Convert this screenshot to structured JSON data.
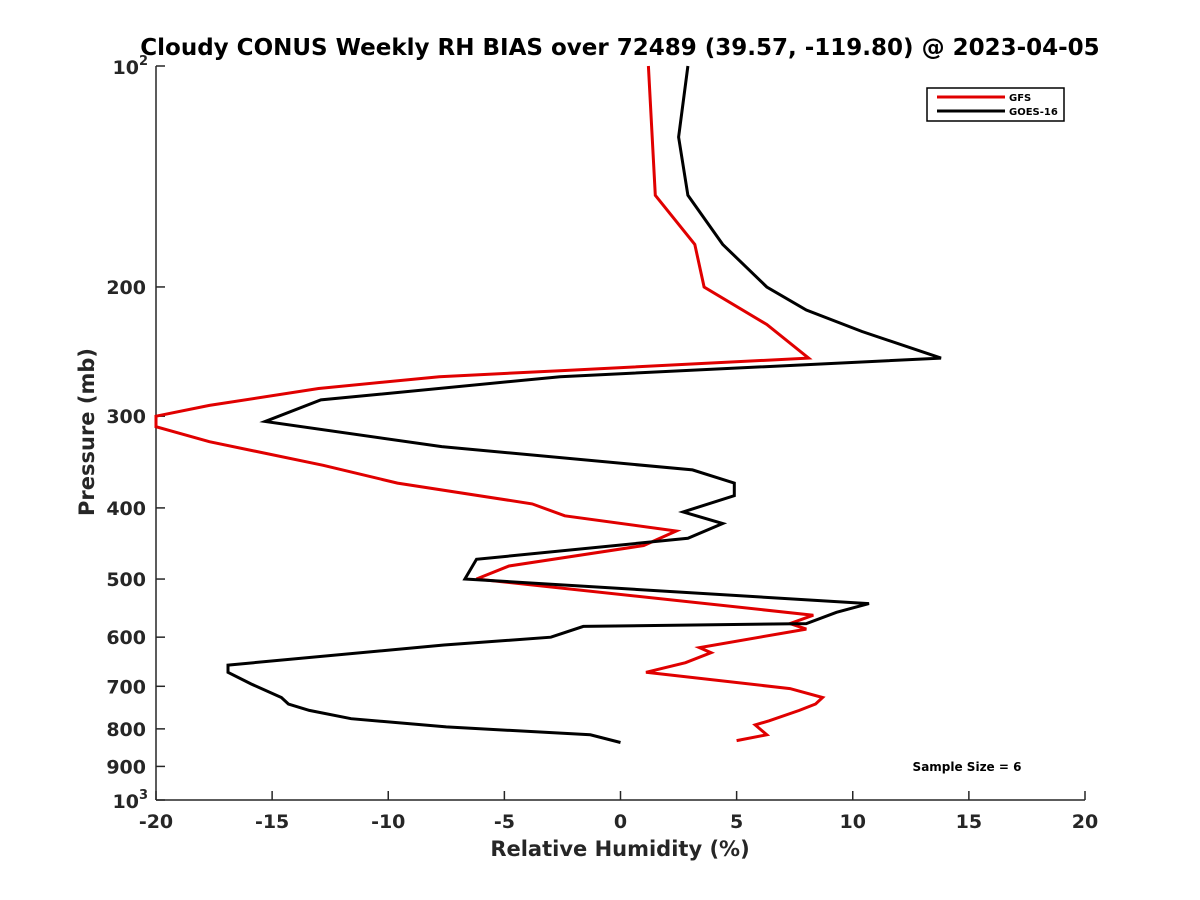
{
  "chart_data": {
    "type": "line",
    "title": "Cloudy CONUS Weekly RH BIAS over 72489 (39.57, -119.80) @ 2023-04-05",
    "xlabel": "Relative Humidity (%)",
    "ylabel": "Pressure (mb)",
    "xlim": [
      -20,
      20
    ],
    "ylim": [
      1000,
      100
    ],
    "yscale": "log",
    "y_reversed": true,
    "grid": false,
    "x_ticks": [
      -20,
      -15,
      -10,
      -5,
      0,
      5,
      10,
      15,
      20
    ],
    "y_ticks": [
      {
        "value": 100,
        "base": "10",
        "exp": "2",
        "label": ""
      },
      {
        "value": 200,
        "label": "200"
      },
      {
        "value": 300,
        "label": "300"
      },
      {
        "value": 400,
        "label": "400"
      },
      {
        "value": 500,
        "label": "500"
      },
      {
        "value": 600,
        "label": "600"
      },
      {
        "value": 700,
        "label": "700"
      },
      {
        "value": 800,
        "label": "800"
      },
      {
        "value": 900,
        "label": "900"
      },
      {
        "value": 1000,
        "base": "10",
        "exp": "3",
        "label": ""
      }
    ],
    "legend": {
      "position": "top-right"
    },
    "annotation": "Sample Size = 6",
    "series": [
      {
        "name": "GFS",
        "color": "#e00000",
        "points": [
          [
            1.2,
            100
          ],
          [
            1.5,
            150
          ],
          [
            3.2,
            175
          ],
          [
            3.6,
            200
          ],
          [
            6.3,
            225
          ],
          [
            8.1,
            250
          ],
          [
            -2.5,
            260
          ],
          [
            -7.8,
            265
          ],
          [
            -13,
            275
          ],
          [
            -17.7,
            290
          ],
          [
            -20,
            300
          ],
          [
            -20,
            310
          ],
          [
            -17.7,
            325
          ],
          [
            -12.8,
            350
          ],
          [
            -9.6,
            370
          ],
          [
            -3.8,
            395
          ],
          [
            -2.4,
            410
          ],
          [
            2.4,
            430
          ],
          [
            1.0,
            450
          ],
          [
            -4.8,
            480
          ],
          [
            -6.2,
            500
          ],
          [
            8.3,
            560
          ],
          [
            7.3,
            575
          ],
          [
            8.0,
            585
          ],
          [
            3.4,
            620
          ],
          [
            3.9,
            630
          ],
          [
            2.8,
            650
          ],
          [
            1.1,
            670
          ],
          [
            7.3,
            705
          ],
          [
            8.7,
            725
          ],
          [
            8.4,
            740
          ],
          [
            7.7,
            755
          ],
          [
            6.4,
            780
          ],
          [
            5.8,
            790
          ],
          [
            6.3,
            815
          ],
          [
            5.0,
            830
          ]
        ]
      },
      {
        "name": "GOES-16",
        "color": "#000000",
        "points": [
          [
            2.9,
            100
          ],
          [
            2.5,
            125
          ],
          [
            2.9,
            150
          ],
          [
            4.4,
            175
          ],
          [
            6.3,
            200
          ],
          [
            8.0,
            215
          ],
          [
            10.4,
            230
          ],
          [
            13.8,
            250
          ],
          [
            -2.6,
            265
          ],
          [
            -12.9,
            285
          ],
          [
            -15.3,
            305
          ],
          [
            -7.7,
            330
          ],
          [
            3.1,
            355
          ],
          [
            4.9,
            370
          ],
          [
            4.9,
            385
          ],
          [
            2.7,
            405
          ],
          [
            4.4,
            420
          ],
          [
            2.9,
            440
          ],
          [
            -6.2,
            470
          ],
          [
            -6.7,
            500
          ],
          [
            10.7,
            540
          ],
          [
            9.3,
            555
          ],
          [
            8.0,
            575
          ],
          [
            -1.6,
            580
          ],
          [
            -3.0,
            600
          ],
          [
            -7.6,
            615
          ],
          [
            -16.9,
            655
          ],
          [
            -16.9,
            670
          ],
          [
            -15.9,
            695
          ],
          [
            -14.6,
            725
          ],
          [
            -14.3,
            740
          ],
          [
            -13.4,
            755
          ],
          [
            -11.6,
            775
          ],
          [
            -7.5,
            795
          ],
          [
            -1.3,
            815
          ],
          [
            0.0,
            835
          ]
        ]
      }
    ]
  }
}
